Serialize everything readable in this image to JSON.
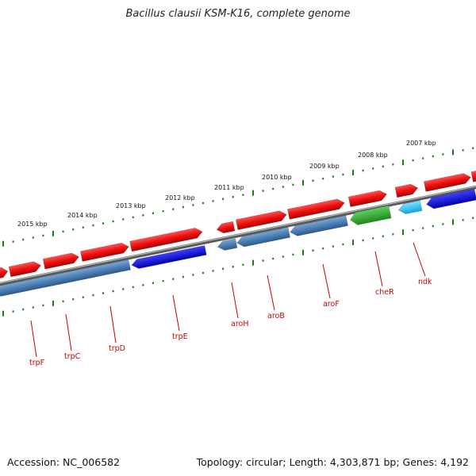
{
  "title": "Bacillus clausii KSM-K16, complete genome",
  "footer": {
    "accession": "Accession: NC_006582",
    "summary": "Topology: circular; Length: 4,303,871 bp; Genes: 4,192"
  },
  "scale_labels": [
    "2015 kbp",
    "2014 kbp",
    "2013 kbp",
    "2012 kbp",
    "2011 kbp",
    "2010 kbp",
    "2009 kbp",
    "2008 kbp",
    "2007 kbp"
  ],
  "gene_labels": [
    "trpF",
    "trpC",
    "trpD",
    "trpE",
    "aroH",
    "aroB",
    "aroF",
    "cheR",
    "ndk"
  ],
  "colors": {
    "forward_gene": "#ee1111",
    "reverse_gene": "#4d7fb5",
    "reverse_highlight": "#1010dd",
    "green_gene": "#2fae2f",
    "cyan_gene": "#2cc0f0",
    "backbone": "#8a8a8a",
    "ticks": "#1a7a1a",
    "label_red": "#cc0000"
  }
}
